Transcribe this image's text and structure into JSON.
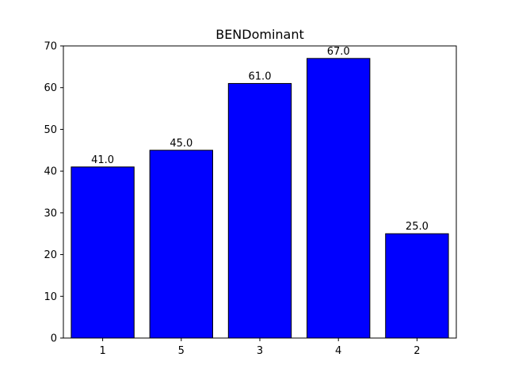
{
  "chart_data": {
    "type": "bar",
    "title": "BENDominant",
    "xlabel": "",
    "ylabel": "",
    "categories": [
      "1",
      "5",
      "3",
      "4",
      "2"
    ],
    "values": [
      41.0,
      45.0,
      61.0,
      67.0,
      25.0
    ],
    "data_labels": [
      "41.0",
      "45.0",
      "61.0",
      "67.0",
      "25.0"
    ],
    "ylim": [
      0,
      70
    ],
    "yticks": [
      0,
      10,
      20,
      30,
      40,
      50,
      60,
      70
    ],
    "ytick_labels": [
      "0",
      "10",
      "20",
      "30",
      "40",
      "50",
      "60",
      "70"
    ],
    "grid": false,
    "legend": "none",
    "bar_color": "#0000ff",
    "bar_edge_color": "#000000"
  }
}
